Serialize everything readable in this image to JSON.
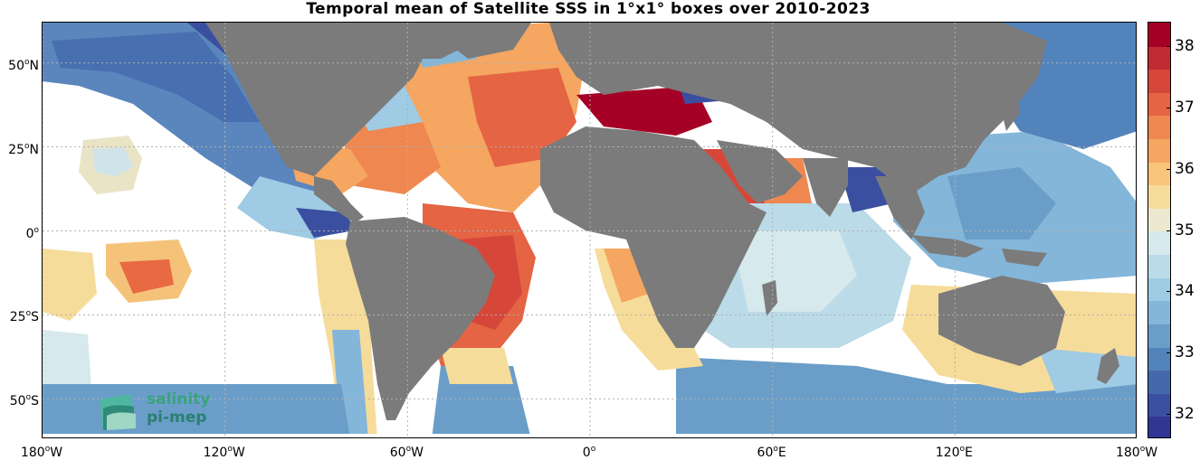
{
  "title": "Temporal mean of Satellite SSS in 1°x1° boxes over 2010-2023",
  "lat_labels": [
    {
      "value": 50,
      "text": "50",
      "hem": "N"
    },
    {
      "value": 25,
      "text": "25",
      "hem": "N"
    },
    {
      "value": 0,
      "text": "0",
      "hem": ""
    },
    {
      "value": -25,
      "text": "25",
      "hem": "S"
    },
    {
      "value": -50,
      "text": "50",
      "hem": "S"
    }
  ],
  "lon_labels": [
    {
      "value": -180,
      "text": "180",
      "hem": "W"
    },
    {
      "value": -120,
      "text": "120",
      "hem": "W"
    },
    {
      "value": -60,
      "text": "60",
      "hem": "W"
    },
    {
      "value": 0,
      "text": "0",
      "hem": ""
    },
    {
      "value": 60,
      "text": "60",
      "hem": "E"
    },
    {
      "value": 120,
      "text": "120",
      "hem": "E"
    },
    {
      "value": 180,
      "text": "180",
      "hem": "W"
    }
  ],
  "colorbar": {
    "min": 31.6,
    "max": 38.4,
    "ticks": [
      "32",
      "33",
      "34",
      "35",
      "36",
      "37",
      "38"
    ],
    "colors": [
      "#313695",
      "#3b4fa0",
      "#4568ac",
      "#5383bb",
      "#6a9ec9",
      "#84b6d9",
      "#9fcbe4",
      "#bbdbe9",
      "#d6e9ec",
      "#ece9d0",
      "#f6dc9a",
      "#f8c57a",
      "#f5a660",
      "#ef8750",
      "#e46443",
      "#d6473a",
      "#c12b34",
      "#a50026"
    ]
  },
  "map_extent": {
    "lon_min": -180,
    "lon_max": 180,
    "lat_min": -62,
    "lat_max": 62
  },
  "logo": {
    "line1": "salinity",
    "line2": "pi-mep"
  },
  "colors": {
    "land": "#7b7b7b",
    "grid": "#b0b0b0",
    "background": "#ffffff"
  }
}
